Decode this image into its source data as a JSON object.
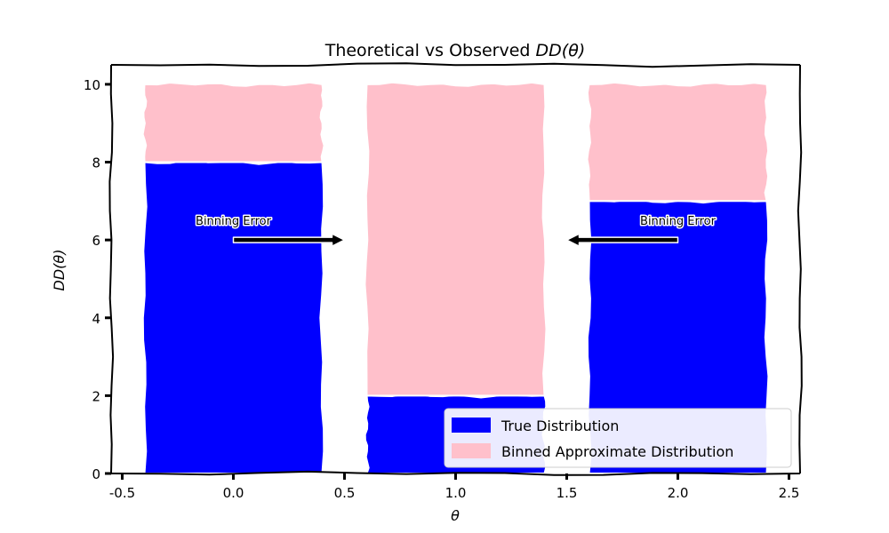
{
  "chart_data": {
    "type": "bar",
    "title_plain": "Theoretical vs Observed ",
    "title_math": "DD(θ)",
    "xlabel": "θ",
    "ylabel": "DD(θ)",
    "x": [
      0,
      1,
      2
    ],
    "bar_width": 0.8,
    "xlim": [
      -0.55,
      2.55
    ],
    "ylim": [
      0,
      10.5
    ],
    "xticks": [
      -0.5,
      0.0,
      0.5,
      1.0,
      1.5,
      2.0,
      2.5
    ],
    "xtick_labels": [
      "-0.5",
      "0.0",
      "0.5",
      "1.0",
      "1.5",
      "2.0",
      "2.5"
    ],
    "yticks": [
      0,
      2,
      4,
      6,
      8,
      10
    ],
    "ytick_labels": [
      "0",
      "2",
      "4",
      "6",
      "8",
      "10"
    ],
    "series": [
      {
        "name": "True Distribution",
        "values": [
          8,
          2,
          7
        ],
        "color": "#0000ff"
      },
      {
        "name": "Binned Approximate Distribution",
        "values": [
          2,
          8,
          3
        ],
        "color": "#ffc0cb"
      }
    ],
    "stacked": true,
    "grid": false,
    "legend_position": "lower-right",
    "annotations": [
      {
        "text": "Binning Error",
        "text_x": 0.0,
        "text_y": 6.5,
        "arrow_to_x": 0.5,
        "arrow_to_y": 6.0
      },
      {
        "text": "Binning Error",
        "text_x": 2.0,
        "text_y": 6.5,
        "arrow_to_x": 1.5,
        "arrow_to_y": 6.0
      }
    ]
  }
}
